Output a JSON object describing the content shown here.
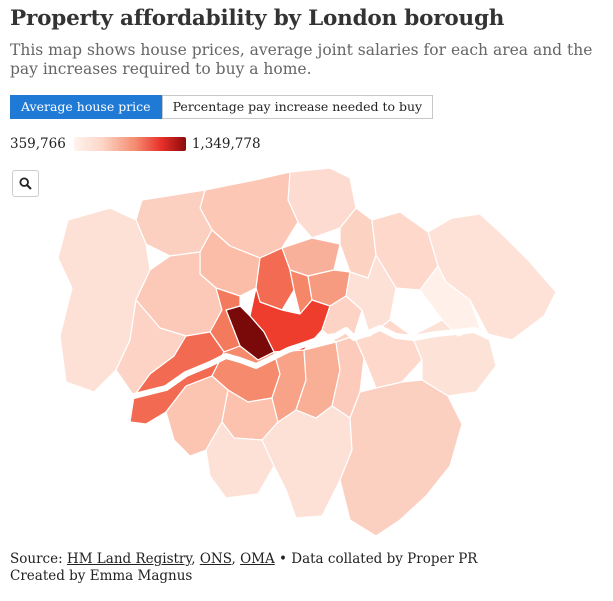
{
  "title": "Property affordability by London borough",
  "subtitle": "This map shows house prices, average joint salaries for each area and the pay increases required to buy a home.",
  "tabs": [
    {
      "label": "Average house price",
      "active": true
    },
    {
      "label": "Percentage pay increase needed to buy",
      "active": false
    }
  ],
  "legend": {
    "min": "359,766",
    "max": "1,349,778"
  },
  "controls": {
    "zoom_icon": "search-icon"
  },
  "footer": {
    "source_label": "Source:",
    "links": [
      "HM Land Registry",
      "ONS",
      "OMA"
    ],
    "collated": "• Data collated by Proper PR",
    "credit": "Created by Emma Magnus"
  },
  "colors": {
    "active_tab": "#1f7ad6",
    "scale_low": "#fff3ef",
    "scale_high": "#8a0b0b",
    "river": "#ffffff"
  }
}
